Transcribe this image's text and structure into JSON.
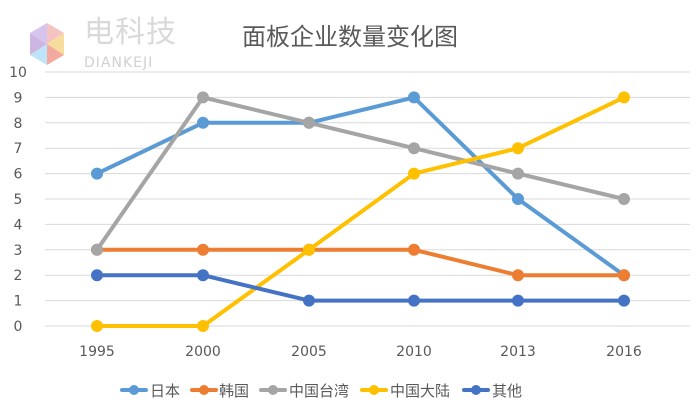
{
  "logo": {
    "cn": "电科技",
    "en": "DIANKEJI"
  },
  "chart_data": {
    "type": "line",
    "title": "面板企业数量变化图",
    "categories": [
      "1995",
      "2000",
      "2005",
      "2010",
      "2013",
      "2016"
    ],
    "ylim": [
      0,
      10
    ],
    "yticks": [
      0,
      1,
      2,
      3,
      4,
      5,
      6,
      7,
      8,
      9,
      10
    ],
    "grid": true,
    "legend_position": "bottom",
    "series": [
      {
        "name": "日本",
        "color": "#5B9BD5",
        "values": [
          6,
          8,
          8,
          9,
          5,
          2
        ]
      },
      {
        "name": "韩国",
        "color": "#ED7D31",
        "values": [
          3,
          3,
          3,
          3,
          2,
          2
        ]
      },
      {
        "name": "中国台湾",
        "color": "#A5A5A5",
        "values": [
          3,
          9,
          8,
          7,
          6,
          5
        ]
      },
      {
        "name": "中国大陆",
        "color": "#FFC000",
        "values": [
          0,
          0,
          3,
          6,
          7,
          9
        ]
      },
      {
        "name": "其他",
        "color": "#4472C4",
        "values": [
          2,
          2,
          1,
          1,
          1,
          1
        ]
      }
    ]
  }
}
